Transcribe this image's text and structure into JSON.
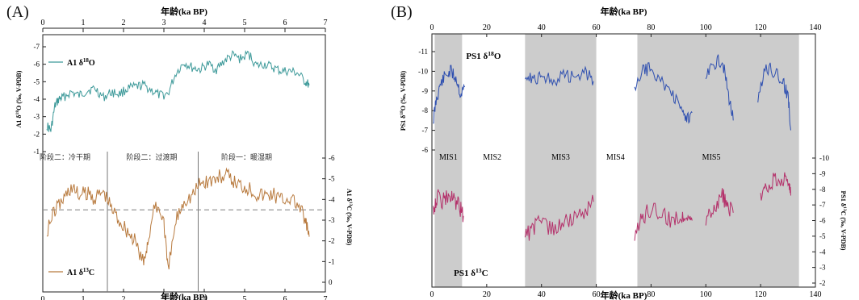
{
  "panels": {
    "a": {
      "label": "(A)"
    },
    "b": {
      "label": "(B)"
    }
  },
  "colors": {
    "a_d18o": "#3e9a9a",
    "a_d13c": "#b87a3e",
    "b_d18o": "#2e4fb0",
    "b_d13c": "#b4306a",
    "shade": "#cccccc",
    "dashed": "#8c8c8c"
  },
  "chart_data": [
    {
      "id": "A",
      "type": "line",
      "x_top_label": "年龄(ka BP)",
      "x_bottom_label": "年龄(ka BP)",
      "xlim": [
        0,
        7
      ],
      "x_ticks": [
        "0",
        "1",
        "2",
        "3",
        "4",
        "5",
        "6",
        "7"
      ],
      "grid": false,
      "subplots": [
        {
          "name": "A1 δ18O",
          "ylabel": "A1 δ18O (‰, V-PDB)",
          "ylim": [
            -7,
            -1
          ],
          "y_inverted": true,
          "y_ticks": [
            "-7",
            "-6",
            "-5",
            "-4",
            "-3",
            "-2",
            "-1"
          ],
          "legend": "A1 δ18O",
          "series": {
            "x": [
              0.1,
              0.2,
              0.3,
              0.4,
              0.5,
              0.7,
              0.9,
              1.1,
              1.3,
              1.5,
              1.7,
              1.9,
              2.1,
              2.3,
              2.5,
              2.7,
              2.9,
              3.1,
              3.3,
              3.5,
              3.7,
              3.9,
              4.1,
              4.3,
              4.5,
              4.7,
              4.9,
              5.1,
              5.3,
              5.5,
              5.7,
              5.9,
              6.1,
              6.3,
              6.5,
              6.6
            ],
            "y": [
              -2.5,
              -2.2,
              -3.6,
              -4.0,
              -4.1,
              -4.4,
              -4.2,
              -4.5,
              -4.6,
              -4.1,
              -4.4,
              -4.3,
              -4.6,
              -4.7,
              -4.8,
              -4.5,
              -4.2,
              -4.3,
              -5.5,
              -6.1,
              -5.8,
              -5.7,
              -6.0,
              -5.7,
              -6.2,
              -6.5,
              -6.3,
              -6.6,
              -5.9,
              -6.0,
              -5.8,
              -5.6,
              -5.6,
              -5.5,
              -5.0,
              -4.8
            ]
          }
        },
        {
          "name": "A1 δ13C",
          "ylabel": "A1 δ13C (‰, V-PDB)",
          "ylim": [
            0,
            -6
          ],
          "y_inverted": true,
          "y_ticks": [
            "-6",
            "-5",
            "-4",
            "-3",
            "-2",
            "-1",
            "0"
          ],
          "legend": "A1 δ13C",
          "mean_line": -3.5,
          "dividers_x": [
            1.6,
            3.85
          ],
          "stage_labels": [
            "阶段二：冷干期",
            "阶段二：过渡期",
            "阶段一：暖湿期"
          ],
          "series": {
            "x": [
              0.1,
              0.3,
              0.5,
              0.7,
              0.9,
              1.1,
              1.3,
              1.5,
              1.7,
              1.9,
              2.1,
              2.3,
              2.5,
              2.6,
              2.8,
              3.0,
              3.1,
              3.3,
              3.5,
              3.7,
              3.9,
              4.1,
              4.3,
              4.5,
              4.7,
              4.9,
              5.1,
              5.3,
              5.5,
              5.7,
              5.9,
              6.1,
              6.3,
              6.5,
              6.6
            ],
            "y": [
              -2.5,
              -3.5,
              -4.0,
              -4.6,
              -4.2,
              -4.3,
              -4.1,
              -4.4,
              -3.6,
              -3.0,
              -2.5,
              -1.9,
              -0.9,
              -2.0,
              -3.8,
              -3.0,
              -0.5,
              -3.0,
              -4.0,
              -4.2,
              -4.8,
              -4.9,
              -5.0,
              -5.2,
              -4.9,
              -4.7,
              -4.6,
              -4.3,
              -4.2,
              -4.3,
              -4.0,
              -4.1,
              -3.8,
              -3.0,
              -2.2
            ]
          }
        }
      ]
    },
    {
      "id": "B",
      "type": "line",
      "x_top_label": "年龄(ka BP)",
      "x_bottom_label": "年龄(ka BP)",
      "xlim": [
        0,
        140
      ],
      "x_ticks": [
        "0",
        "20",
        "40",
        "60",
        "80",
        "100",
        "120",
        "140"
      ],
      "grid": false,
      "shaded_intervals": [
        [
          1,
          11
        ],
        [
          34,
          60
        ],
        [
          75,
          134
        ]
      ],
      "mis_labels": [
        {
          "text": "MIS1",
          "x": 6
        },
        {
          "text": "MIS2",
          "x": 22
        },
        {
          "text": "MIS3",
          "x": 47
        },
        {
          "text": "MIS4",
          "x": 67
        },
        {
          "text": "MIS5",
          "x": 102
        }
      ],
      "subplots": [
        {
          "name": "PS1 δ18O",
          "ylabel": "PS1 δ18O (‰, V-PDB)",
          "ylim": [
            -11,
            -6
          ],
          "y_inverted": true,
          "y_ticks": [
            "-11",
            "-10",
            "-9",
            "-8",
            "-7",
            "-6"
          ],
          "legend": "PS1 δ18O",
          "segments": [
            {
              "x": [
                0.5,
                1.5,
                3,
                5,
                7,
                9,
                10.5,
                12
              ],
              "y": [
                -7.5,
                -8.5,
                -9.3,
                -9.8,
                -10.0,
                -9.6,
                -8.8,
                -9.2
              ]
            },
            {
              "x": [
                34,
                37,
                40,
                44,
                48,
                52,
                56,
                59
              ],
              "y": [
                -9.9,
                -9.6,
                -9.8,
                -9.5,
                -9.8,
                -9.7,
                -10.0,
                -9.5
              ]
            },
            {
              "x": [
                74,
                77,
                80,
                84,
                88,
                91,
                93,
                95
              ],
              "y": [
                -9.0,
                -10.0,
                -10.2,
                -9.4,
                -8.8,
                -8.0,
                -7.6,
                -7.9
              ]
            },
            {
              "x": [
                100,
                103,
                106,
                108,
                110
              ],
              "y": [
                -9.6,
                -10.4,
                -10.6,
                -9.0,
                -7.5
              ]
            },
            {
              "x": [
                119,
                122,
                125,
                128,
                130,
                131
              ],
              "y": [
                -8.6,
                -10.2,
                -10.0,
                -9.5,
                -8.8,
                -7.0
              ]
            }
          ]
        },
        {
          "name": "PS1 δ13C",
          "ylabel": "PS1 δ13C (‰, V-PDB)",
          "ylim": [
            -10,
            -2
          ],
          "y_inverted": true,
          "y_ticks": [
            "-10",
            "-9",
            "-8",
            "-7",
            "-6",
            "-5",
            "-4",
            "-3",
            "-2"
          ],
          "legend": "PS1 δ13C",
          "segments": [
            {
              "x": [
                0.5,
                2,
                4,
                6,
                8,
                10,
                11.5
              ],
              "y": [
                -6.8,
                -7.5,
                -7.2,
                -7.6,
                -7.3,
                -6.9,
                -6.3
              ]
            },
            {
              "x": [
                34,
                37,
                40,
                44,
                48,
                52,
                56,
                59
              ],
              "y": [
                -5.0,
                -5.5,
                -6.0,
                -5.4,
                -5.8,
                -6.2,
                -6.6,
                -7.2
              ]
            },
            {
              "x": [
                74,
                77,
                80,
                84,
                88,
                91,
                93,
                95
              ],
              "y": [
                -5.0,
                -6.2,
                -6.8,
                -6.4,
                -6.0,
                -6.2,
                -6.6,
                -6.0
              ]
            },
            {
              "x": [
                100,
                103,
                106,
                108,
                110
              ],
              "y": [
                -6.2,
                -6.8,
                -7.6,
                -7.0,
                -6.5
              ]
            },
            {
              "x": [
                120,
                122,
                125,
                128,
                130,
                131
              ],
              "y": [
                -7.4,
                -8.0,
                -8.6,
                -8.8,
                -8.3,
                -7.6
              ]
            }
          ]
        }
      ]
    }
  ]
}
